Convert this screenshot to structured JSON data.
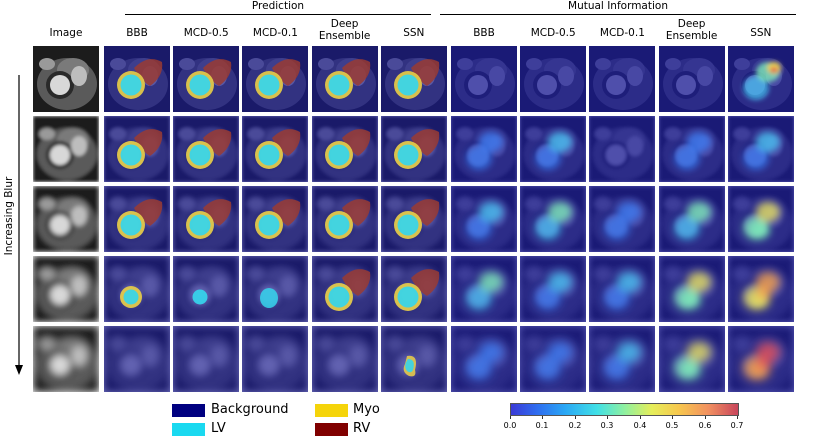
{
  "groups": {
    "prediction": "Prediction",
    "mutual_information": "Mutual Information"
  },
  "columns": {
    "image": "Image",
    "prediction": [
      "BBB",
      "MCD-0.5",
      "MCD-0.1",
      "Deep\nEnsemble",
      "SSN"
    ],
    "mutual_information": [
      "BBB",
      "MCD-0.5",
      "MCD-0.1",
      "Deep\nEnsemble",
      "SSN"
    ]
  },
  "side_label": "Increasing Blur",
  "legend": [
    {
      "label": "Background",
      "color": "#000080"
    },
    {
      "label": "LV",
      "color": "#1ad9f0"
    },
    {
      "label": "Myo",
      "color": "#f5d40a"
    },
    {
      "label": "RV",
      "color": "#800000"
    }
  ],
  "colorbar": {
    "ticks": [
      "0.0",
      "0.1",
      "0.2",
      "0.3",
      "0.4",
      "0.5",
      "0.6",
      "0.7"
    ],
    "range": [
      0,
      0.7
    ],
    "colormap": "jet"
  },
  "grid": {
    "rows": 5,
    "prediction_cols": 5,
    "mi_cols": 5
  }
}
